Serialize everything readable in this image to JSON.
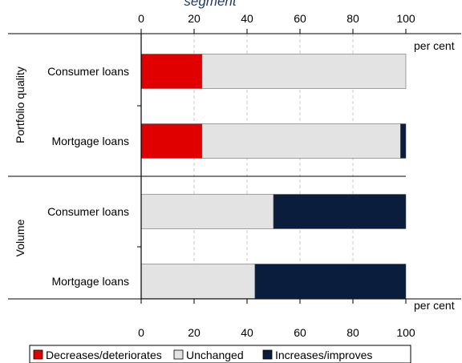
{
  "chart_data": {
    "type": "bar",
    "orientation": "horizontal",
    "stacked": true,
    "title": "segment",
    "unit": "per cent",
    "xlim": [
      0,
      100
    ],
    "x_ticks": [
      "0",
      "20",
      "40",
      "60",
      "80",
      "100"
    ],
    "grid": true,
    "legend_position": "bottom",
    "groups": [
      {
        "label": "Portfolio quality",
        "categories": [
          "Consumer loans",
          "Mortgage loans"
        ]
      },
      {
        "label": "Volume",
        "categories": [
          "Consumer loans",
          "Mortgage loans"
        ]
      }
    ],
    "series": [
      {
        "name": "Decreases/deteriorates",
        "color": "#e00000",
        "values": [
          23,
          23,
          0,
          0
        ]
      },
      {
        "name": "Unchanged",
        "color": "#e3e3e3",
        "values": [
          77,
          75,
          50,
          43
        ]
      },
      {
        "name": "Increases/improves",
        "color": "#0b1d3d",
        "values": [
          0,
          2,
          50,
          57
        ]
      }
    ]
  }
}
